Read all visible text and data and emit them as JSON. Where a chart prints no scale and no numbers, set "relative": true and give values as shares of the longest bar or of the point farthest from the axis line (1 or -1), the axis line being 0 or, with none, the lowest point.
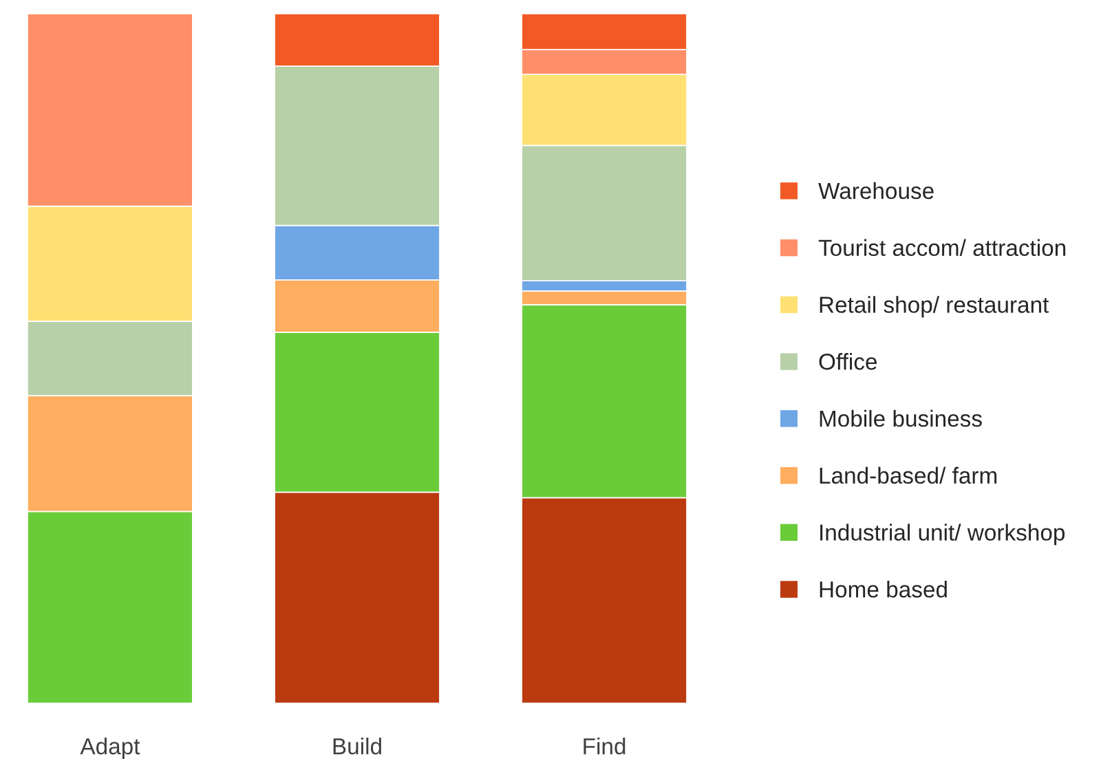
{
  "chart_data": {
    "type": "bar",
    "stacked": true,
    "relative": true,
    "legend": "right",
    "categories": [
      "Adapt",
      "Build",
      "Find"
    ],
    "series": [
      {
        "name": "Home based",
        "color": "#bb3a10",
        "values": [
          null,
          0.306,
          0.298
        ]
      },
      {
        "name": "Industrial unit/ workshop",
        "color": "#6bcc3a",
        "values": [
          0.278,
          0.232,
          0.28
        ]
      },
      {
        "name": "Land-based/ farm",
        "color": "#ffad5f",
        "values": [
          0.168,
          0.076,
          0.02
        ]
      },
      {
        "name": "Mobile business",
        "color": "#6fa6e6",
        "values": [
          null,
          0.079,
          0.015
        ]
      },
      {
        "name": "Office",
        "color": "#b8d0a8",
        "values": [
          0.108,
          0.231,
          0.196
        ]
      },
      {
        "name": "Retail shop/ restaurant",
        "color": "#ffe173",
        "values": [
          0.167,
          null,
          0.103
        ]
      },
      {
        "name": "Tourist accom/ attraction",
        "color": "#ff8f69",
        "values": [
          0.279,
          null,
          0.036
        ]
      },
      {
        "name": "Warehouse",
        "color": "#f15a24",
        "values": [
          null,
          0.076,
          0.052
        ]
      }
    ]
  }
}
